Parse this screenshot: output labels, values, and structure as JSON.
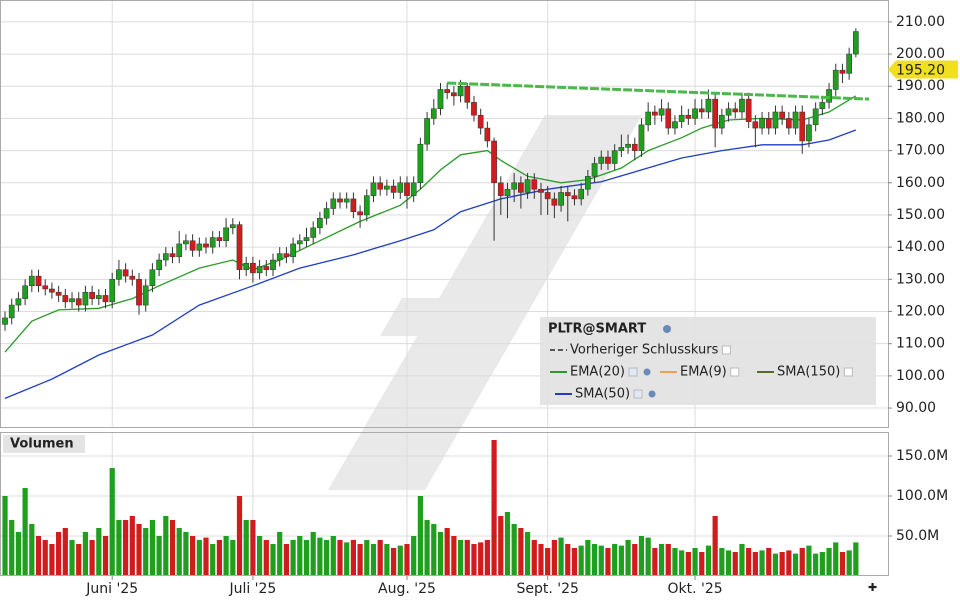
{
  "chart_data": {
    "type": "candlestick",
    "symbol": "PLTR@SMART",
    "up_color": "#1ea01e",
    "down_color": "#d01c1c",
    "xlim": [
      -0.75,
      131.8
    ],
    "xticks": [
      {
        "value": 16,
        "label": "Juni '25"
      },
      {
        "value": 37,
        "label": "Juli '25"
      },
      {
        "value": 60,
        "label": "Aug. '25"
      },
      {
        "value": 81,
        "label": "Sept. '25"
      },
      {
        "value": 103,
        "label": "Okt. '25"
      }
    ],
    "ylim": [
      83.8,
      216.8
    ],
    "yticks": [
      {
        "value": 90,
        "label": "90.00"
      },
      {
        "value": 100,
        "label": "100.00"
      },
      {
        "value": 110,
        "label": "110.00"
      },
      {
        "value": 120,
        "label": "120.00"
      },
      {
        "value": 130,
        "label": "130.00"
      },
      {
        "value": 140,
        "label": "140.00"
      },
      {
        "value": 150,
        "label": "150.00"
      },
      {
        "value": 160,
        "label": "160.00"
      },
      {
        "value": 170,
        "label": "170.00"
      },
      {
        "value": 180,
        "label": "180.00"
      },
      {
        "value": 190,
        "label": "190.00"
      },
      {
        "value": 200,
        "label": "200.00"
      },
      {
        "value": 210,
        "label": "210.00"
      }
    ],
    "grid": true,
    "last_price": {
      "value": 195.2,
      "label": "195.20"
    },
    "open": [
      116,
      118,
      122,
      124,
      128,
      131,
      128,
      127,
      126,
      125,
      123,
      124,
      122,
      126,
      124,
      125,
      123,
      130,
      133,
      131,
      130,
      122,
      128,
      133,
      136,
      138,
      137,
      141,
      142,
      139,
      141,
      140,
      143,
      142,
      146,
      147,
      133,
      135,
      132,
      134,
      133,
      136,
      138,
      137,
      141,
      142,
      143,
      146,
      149,
      152,
      155,
      154,
      155,
      151,
      150,
      156,
      160,
      158,
      159,
      157,
      160,
      156,
      160,
      172,
      180,
      183,
      189,
      188,
      187,
      190,
      185,
      181,
      177,
      173,
      160,
      156,
      158,
      160,
      157,
      161,
      158,
      157,
      155,
      153,
      157,
      156,
      155,
      158,
      162,
      166,
      168,
      166,
      170,
      171,
      172,
      170,
      178,
      182,
      181,
      183,
      177,
      179,
      181,
      180,
      183,
      182,
      186,
      177,
      181,
      183,
      182,
      186,
      179,
      177,
      180,
      177,
      182,
      180,
      177,
      182,
      173,
      178,
      183,
      185,
      189,
      195,
      194,
      200
    ],
    "high": [
      120,
      124,
      126,
      130,
      133,
      133,
      130,
      129,
      128,
      127,
      126,
      126,
      128,
      128,
      127,
      127,
      132,
      136,
      135,
      133,
      132,
      130,
      135,
      138,
      140,
      140,
      145,
      144,
      144,
      143,
      143,
      145,
      145,
      149,
      149,
      148,
      137,
      137,
      136,
      136,
      138,
      140,
      140,
      143,
      144,
      146,
      148,
      151,
      154,
      157,
      157,
      157,
      157,
      153,
      158,
      162,
      162,
      161,
      161,
      162,
      162,
      162,
      174,
      182,
      186,
      191,
      191,
      190,
      192,
      191,
      187,
      183,
      179,
      174,
      162,
      160,
      163,
      162,
      163,
      163,
      160,
      159,
      157,
      159,
      159,
      158,
      160,
      164,
      168,
      170,
      170,
      172,
      175,
      175,
      174,
      180,
      185,
      184,
      186,
      185,
      181,
      184,
      183,
      186,
      186,
      189,
      188,
      183,
      185,
      185,
      188,
      188,
      181,
      182,
      182,
      184,
      184,
      182,
      184,
      184,
      180,
      185,
      187,
      191,
      197,
      197,
      202,
      208
    ],
    "low": [
      114,
      116,
      120,
      122,
      126,
      126,
      125,
      124,
      123,
      121,
      121,
      120,
      120,
      122,
      122,
      121,
      121,
      128,
      129,
      128,
      119,
      120,
      126,
      131,
      134,
      135,
      135,
      139,
      137,
      137,
      138,
      138,
      140,
      140,
      144,
      130,
      131,
      129,
      130,
      131,
      131,
      134,
      135,
      135,
      139,
      140,
      141,
      144,
      147,
      150,
      152,
      152,
      149,
      146,
      148,
      154,
      156,
      156,
      155,
      155,
      152,
      154,
      158,
      170,
      178,
      181,
      186,
      184,
      185,
      183,
      179,
      175,
      171,
      142,
      150,
      149,
      154,
      152,
      155,
      155,
      150,
      150,
      149,
      151,
      148,
      153,
      153,
      156,
      160,
      164,
      164,
      164,
      168,
      169,
      167,
      168,
      176,
      178,
      179,
      175,
      175,
      177,
      178,
      178,
      180,
      180,
      171,
      175,
      179,
      180,
      180,
      177,
      171,
      175,
      175,
      175,
      178,
      175,
      175,
      169,
      171,
      176,
      181,
      183,
      187,
      191,
      192,
      199
    ],
    "close": [
      118,
      122,
      124,
      128,
      131,
      128,
      127,
      126,
      125,
      123,
      124,
      122,
      126,
      124,
      125,
      123,
      130,
      133,
      131,
      130,
      122,
      128,
      133,
      136,
      138,
      137,
      141,
      142,
      139,
      141,
      140,
      143,
      142,
      146,
      147,
      133,
      135,
      132,
      134,
      133,
      136,
      138,
      137,
      141,
      142,
      143,
      146,
      149,
      152,
      155,
      154,
      155,
      151,
      150,
      156,
      160,
      158,
      159,
      157,
      160,
      156,
      160,
      172,
      180,
      183,
      189,
      188,
      187,
      190,
      185,
      181,
      177,
      173,
      160,
      156,
      158,
      160,
      157,
      161,
      158,
      157,
      155,
      153,
      157,
      156,
      155,
      158,
      162,
      166,
      168,
      166,
      170,
      171,
      172,
      170,
      178,
      182,
      181,
      183,
      177,
      179,
      181,
      180,
      183,
      182,
      186,
      177,
      181,
      183,
      182,
      186,
      179,
      177,
      180,
      177,
      182,
      180,
      177,
      182,
      173,
      178,
      183,
      185,
      189,
      195,
      194,
      200,
      207
    ],
    "trendline": {
      "color": "#4cb84c",
      "x": [
        66,
        129
      ],
      "values": [
        191,
        186
      ]
    },
    "indicators": [
      {
        "name": "Vorheriger Schlusskurs",
        "color": "#555555",
        "dashed": true
      },
      {
        "name": "EMA(20)",
        "color": "#2a9a2a",
        "x": [
          0,
          4,
          8,
          14,
          19,
          23,
          29,
          34,
          37,
          41,
          47,
          53,
          59,
          62,
          65,
          68,
          72,
          74,
          78,
          83,
          87,
          92,
          96,
          101,
          104,
          108,
          113,
          119,
          123,
          127
        ],
        "values": [
          107.4,
          117,
          120.5,
          121,
          124,
          128,
          133.5,
          136,
          133,
          136,
          142,
          148,
          153,
          158,
          164,
          168.7,
          170,
          167,
          162,
          160,
          161,
          164.6,
          170,
          174,
          177,
          179.5,
          180,
          179.5,
          182,
          187
        ]
      },
      {
        "name": "EMA(9)",
        "color": "#f0a050"
      },
      {
        "name": "SMA(150)",
        "color": "#556b2f"
      },
      {
        "name": "SMA(50)",
        "color": "#1f3fbf",
        "x": [
          0,
          7,
          14,
          22,
          29,
          37,
          44,
          52,
          59,
          64,
          68,
          74,
          81,
          89,
          95,
          101,
          107,
          113,
          119,
          123,
          127
        ],
        "values": [
          93,
          99,
          106.5,
          112.7,
          122,
          128,
          133.5,
          137.6,
          142,
          145.4,
          151,
          155,
          158,
          160.3,
          164,
          167.7,
          170,
          171.8,
          171.8,
          173.3,
          176.4
        ]
      }
    ],
    "volume": {
      "label": "Volumen",
      "ylim": [
        0,
        180
      ],
      "yticks": [
        {
          "value": 50,
          "label": "50.0M"
        },
        {
          "value": 100,
          "label": "100.0M"
        },
        {
          "value": 150,
          "label": "150.0M"
        }
      ],
      "values": [
        100,
        70,
        55,
        110,
        65,
        50,
        45,
        40,
        55,
        60,
        45,
        40,
        55,
        45,
        60,
        50,
        135,
        70,
        70,
        75,
        65,
        60,
        70,
        50,
        75,
        70,
        60,
        55,
        50,
        45,
        48,
        40,
        45,
        50,
        45,
        100,
        70,
        70,
        50,
        45,
        40,
        55,
        40,
        45,
        50,
        45,
        55,
        48,
        45,
        50,
        45,
        42,
        45,
        40,
        45,
        40,
        45,
        40,
        35,
        38,
        40,
        50,
        100,
        70,
        65,
        55,
        60,
        50,
        45,
        45,
        40,
        42,
        45,
        170,
        75,
        80,
        65,
        60,
        55,
        45,
        40,
        35,
        45,
        48,
        40,
        35,
        38,
        45,
        40,
        38,
        35,
        40,
        38,
        45,
        40,
        50,
        48,
        35,
        40,
        40,
        35,
        32,
        30,
        35,
        30,
        38,
        75,
        35,
        32,
        30,
        40,
        35,
        30,
        32,
        35,
        28,
        30,
        32,
        28,
        35,
        38,
        28,
        30,
        35,
        42,
        30,
        32,
        42
      ]
    }
  }
}
